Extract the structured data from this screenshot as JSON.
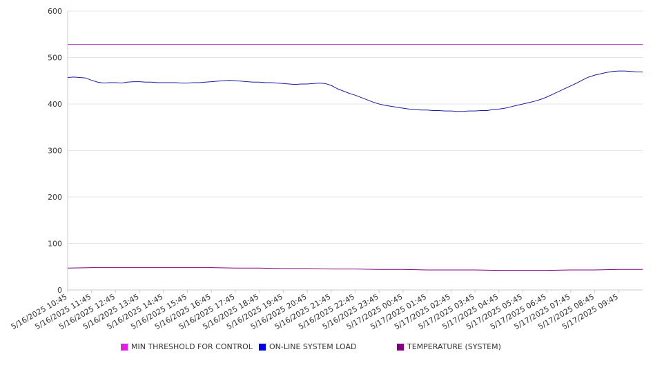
{
  "chart_data": {
    "type": "line",
    "ylim": [
      0,
      600
    ],
    "y_ticks": [
      "0",
      "100",
      "200",
      "300",
      "400",
      "500",
      "600"
    ],
    "x_tick_labels": [
      "5/16/2025 10:45",
      "5/16/2025 11:45",
      "5/16/2025 12:45",
      "5/16/2025 13:45",
      "5/16/2025 14:45",
      "5/16/2025 15:45",
      "5/16/2025 16:45",
      "5/16/2025 17:45",
      "5/16/2025 18:45",
      "5/16/2025 19:45",
      "5/16/2025 20:45",
      "5/16/2025 21:45",
      "5/16/2025 22:45",
      "5/16/2025 23:45",
      "5/17/2025 00:45",
      "5/17/2025 01:45",
      "5/17/2025 02:45",
      "5/17/2025 03:45",
      "5/17/2025 04:45",
      "5/17/2025 05:45",
      "5/17/2025 06:45",
      "5/17/2025 07:45",
      "5/17/2025 08:45",
      "5/17/2025 09:45"
    ],
    "grid": true,
    "legend_position": "bottom",
    "x_start": "5/16/2025 10:45",
    "x_end": "5/17/2025 10:45",
    "series": [
      {
        "name": "MIN THRESHOLD FOR CONTROL",
        "color": "#e01ee0",
        "line_color": "#b040c0",
        "x": [
          "5/16/2025 10:45",
          "5/17/2025 10:45"
        ],
        "values": [
          528,
          528
        ]
      },
      {
        "name": "ON-LINE SYSTEM LOAD",
        "color": "#0000e0",
        "line_color": "#1a1aa0",
        "x": [
          "5/16/2025 10:45",
          "5/16/2025 11:00",
          "5/16/2025 11:15",
          "5/16/2025 11:30",
          "5/16/2025 11:45",
          "5/16/2025 12:00",
          "5/16/2025 12:15",
          "5/16/2025 12:30",
          "5/16/2025 12:45",
          "5/16/2025 13:00",
          "5/16/2025 13:15",
          "5/16/2025 13:30",
          "5/16/2025 13:45",
          "5/16/2025 14:00",
          "5/16/2025 14:15",
          "5/16/2025 14:30",
          "5/16/2025 14:45",
          "5/16/2025 15:00",
          "5/16/2025 15:15",
          "5/16/2025 15:30",
          "5/16/2025 15:45",
          "5/16/2025 16:00",
          "5/16/2025 16:15",
          "5/16/2025 16:30",
          "5/16/2025 16:45",
          "5/16/2025 17:00",
          "5/16/2025 17:15",
          "5/16/2025 17:30",
          "5/16/2025 17:45",
          "5/16/2025 18:00",
          "5/16/2025 18:15",
          "5/16/2025 18:30",
          "5/16/2025 18:45",
          "5/16/2025 19:00",
          "5/16/2025 19:15",
          "5/16/2025 19:30",
          "5/16/2025 19:45",
          "5/16/2025 20:00",
          "5/16/2025 20:15",
          "5/16/2025 20:30",
          "5/16/2025 20:45",
          "5/16/2025 21:00",
          "5/16/2025 21:15",
          "5/16/2025 21:30",
          "5/16/2025 21:45",
          "5/16/2025 22:00",
          "5/16/2025 22:15",
          "5/16/2025 22:30",
          "5/16/2025 22:45",
          "5/16/2025 23:00",
          "5/16/2025 23:15",
          "5/16/2025 23:30",
          "5/16/2025 23:45",
          "5/17/2025 00:00",
          "5/17/2025 00:15",
          "5/17/2025 00:30",
          "5/17/2025 00:45",
          "5/17/2025 01:00",
          "5/17/2025 01:15",
          "5/17/2025 01:30",
          "5/17/2025 01:45",
          "5/17/2025 02:00",
          "5/17/2025 02:15",
          "5/17/2025 02:30",
          "5/17/2025 02:45",
          "5/17/2025 03:00",
          "5/17/2025 03:15",
          "5/17/2025 03:30",
          "5/17/2025 03:45",
          "5/17/2025 04:00",
          "5/17/2025 04:15",
          "5/17/2025 04:30",
          "5/17/2025 04:45",
          "5/17/2025 05:00",
          "5/17/2025 05:15",
          "5/17/2025 05:30",
          "5/17/2025 05:45",
          "5/17/2025 06:00",
          "5/17/2025 06:15",
          "5/17/2025 06:30",
          "5/17/2025 06:45",
          "5/17/2025 07:00",
          "5/17/2025 07:15",
          "5/17/2025 07:30",
          "5/17/2025 07:45",
          "5/17/2025 08:00",
          "5/17/2025 08:15",
          "5/17/2025 08:30",
          "5/17/2025 08:45",
          "5/17/2025 09:00",
          "5/17/2025 09:15",
          "5/17/2025 09:30",
          "5/17/2025 09:45",
          "5/17/2025 10:00",
          "5/17/2025 10:15",
          "5/17/2025 10:30",
          "5/17/2025 10:45"
        ],
        "values": [
          457,
          458,
          457,
          456,
          451,
          447,
          445,
          446,
          446,
          445,
          447,
          448,
          448,
          447,
          447,
          446,
          446,
          446,
          446,
          445,
          445,
          446,
          446,
          447,
          448,
          449,
          450,
          451,
          450,
          449,
          448,
          447,
          447,
          446,
          446,
          445,
          444,
          443,
          442,
          443,
          443,
          444,
          445,
          444,
          440,
          433,
          428,
          423,
          419,
          414,
          409,
          404,
          400,
          397,
          395,
          393,
          391,
          389,
          388,
          387,
          387,
          386,
          386,
          385,
          385,
          384,
          384,
          385,
          385,
          386,
          386,
          388,
          389,
          391,
          394,
          397,
          400,
          403,
          406,
          410,
          415,
          421,
          427,
          433,
          439,
          445,
          452,
          458,
          462,
          465,
          468,
          470,
          471,
          471,
          470,
          469,
          469
        ]
      },
      {
        "name": "TEMPERATURE (SYSTEM)",
        "color": "#800080",
        "line_color": "#800080",
        "x": [
          "5/16/2025 10:45",
          "5/16/2025 11:45",
          "5/16/2025 12:45",
          "5/16/2025 13:45",
          "5/16/2025 14:45",
          "5/16/2025 15:45",
          "5/16/2025 16:45",
          "5/16/2025 17:45",
          "5/16/2025 18:45",
          "5/16/2025 19:45",
          "5/16/2025 20:45",
          "5/16/2025 21:45",
          "5/16/2025 22:45",
          "5/16/2025 23:45",
          "5/17/2025 00:45",
          "5/17/2025 01:45",
          "5/17/2025 02:45",
          "5/17/2025 03:45",
          "5/17/2025 04:45",
          "5/17/2025 05:45",
          "5/17/2025 06:45",
          "5/17/2025 07:45",
          "5/17/2025 08:45",
          "5/17/2025 09:45",
          "5/17/2025 10:45"
        ],
        "values": [
          47,
          48,
          48,
          48,
          48,
          48,
          48,
          47,
          47,
          46,
          46,
          45,
          45,
          44,
          44,
          43,
          43,
          43,
          42,
          42,
          42,
          43,
          43,
          44,
          44
        ]
      }
    ]
  }
}
